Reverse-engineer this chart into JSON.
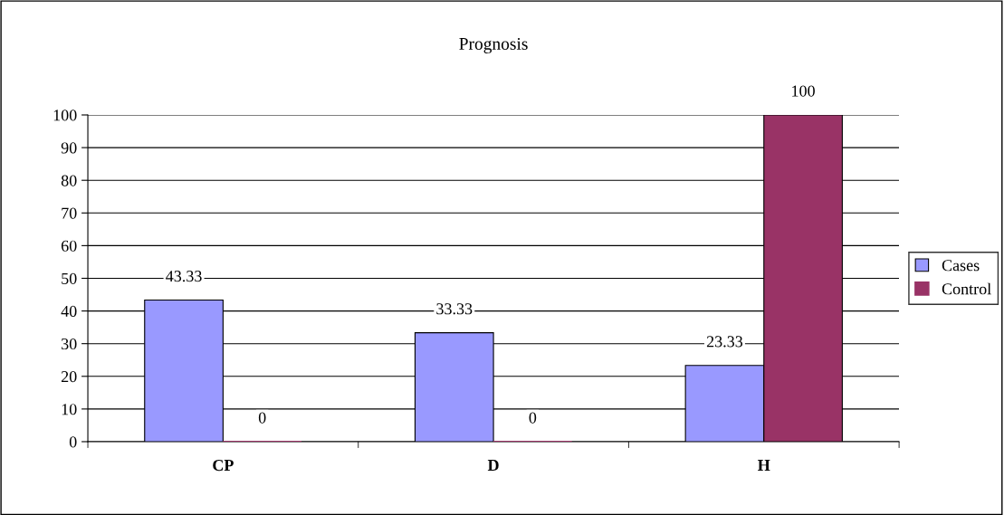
{
  "chart_data": {
    "type": "bar",
    "title": "Prognosis",
    "categories": [
      "CP",
      "D",
      "H"
    ],
    "series": [
      {
        "name": "Cases",
        "color": "#9999ff",
        "values": [
          43.33,
          33.33,
          23.33
        ]
      },
      {
        "name": "Control",
        "color": "#993366",
        "values": [
          0,
          0,
          100
        ]
      }
    ],
    "ylim": [
      0,
      100
    ],
    "yticks": [
      0,
      10,
      20,
      30,
      40,
      50,
      60,
      70,
      80,
      90,
      100
    ],
    "grid": "y",
    "legend": "right",
    "data_labels": true
  }
}
